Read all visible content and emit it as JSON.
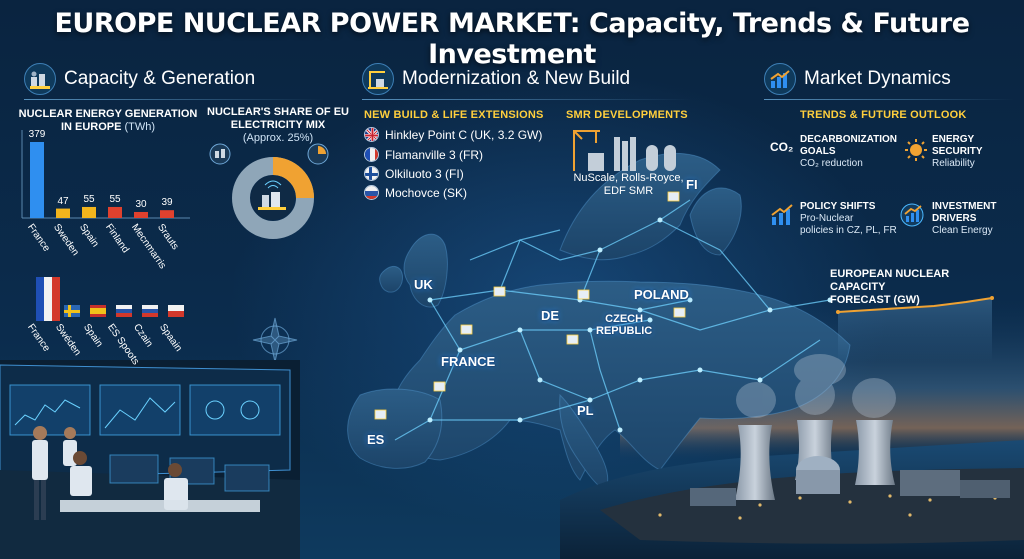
{
  "title": "EUROPE NUCLEAR POWER MARKET: Capacity, Trends & Future Investment",
  "sections": {
    "capacity": {
      "label": "Capacity & Generation",
      "icon": "nuclear-plant-icon"
    },
    "modernization": {
      "label": "Modernization & New Build",
      "icon": "crane-plant-icon"
    },
    "market": {
      "label": "Market Dynamics",
      "icon": "growth-chart-icon"
    }
  },
  "generation_chart": {
    "title": "NUCLEAR ENERGY GENERATION IN EUROPE",
    "unit": "(TWh)"
  },
  "share_chart": {
    "title": "NUCLEAR'S SHARE OF EU ELECTRICITY MIX",
    "subtitle": "(Approx. 25%)",
    "share": 0.25
  },
  "chart_data": [
    {
      "type": "bar",
      "title": "NUCLEAR ENERGY GENERATION IN EUROPE (TWh)",
      "categories": [
        "France",
        "Sweden",
        "Spain",
        "Finland",
        "Mecnmarris",
        "Srauts"
      ],
      "values": [
        379,
        47,
        55,
        55,
        30,
        39
      ],
      "value_labels": [
        "379",
        "47",
        "55",
        "55",
        "30",
        "39"
      ],
      "colors": [
        "#2f8ff0",
        "#f2b51d",
        "#f2b51d",
        "#e0412e",
        "#e0412e",
        "#e0412e"
      ]
    },
    {
      "type": "pie",
      "title": "NUCLEAR'S SHARE OF EU ELECTRICITY MIX",
      "subtitle": "(Approx. 25%)",
      "values": [
        25,
        75
      ]
    }
  ],
  "flag_row": {
    "labels": [
      "France",
      "Swéden",
      "Spain",
      "ES Spoots",
      "Czain",
      "Spaain"
    ]
  },
  "new_build": {
    "title": "NEW BUILD & LIFE EXTENSIONS",
    "items": [
      {
        "label": "Hinkley Point C (UK, 3.2 GW)",
        "flag": "uk"
      },
      {
        "label": "Flamanville 3 (FR)",
        "flag": "fr"
      },
      {
        "label": "Olkiluoto 3 (FI)",
        "flag": "fi"
      },
      {
        "label": "Mochovce (SK)",
        "flag": "sk"
      }
    ]
  },
  "smr": {
    "title": "SMR DEVELOPMENTS",
    "caption_line1": "NuScale, Rolls-Royce,",
    "caption_line2": "EDF SMR"
  },
  "map_labels": {
    "fi": "FI",
    "uk": "UK",
    "poland": "POLAND",
    "de": "DE",
    "czech1": "CZECH",
    "czech2": "REPUBLIC",
    "france": "FRANCE",
    "pl": "PL",
    "es": "ES"
  },
  "outlook": {
    "title": "TRENDS & FUTURE OUTLOOK",
    "items": [
      {
        "icon": "co2-icon",
        "icon_text": "CO₂",
        "head1": "DECARBONIZATION",
        "head2": "GOALS",
        "desc": "CO₂ reduction"
      },
      {
        "icon": "sun-gear-icon",
        "head1": "ENERGY",
        "head2": "SECURITY",
        "desc": "Reliability"
      },
      {
        "icon": "policy-chart-icon",
        "head1": "POLICY SHIFTS",
        "desc1": "Pro-Nuclear",
        "desc2": "policies in CZ, PL, FR"
      },
      {
        "icon": "investment-chart-icon",
        "head1": "INVESTMENT",
        "head2": "DRIVERS",
        "desc": "Clean Energy"
      }
    ]
  },
  "forecast": {
    "title_line1": "EUROPEAN NUCLEAR CAPACITY",
    "title_line2": "FORECAST (GW)"
  },
  "colors": {
    "background": "#071a2e",
    "accent_gold": "#ffcf3d",
    "accent_orange": "#f0a232",
    "accent_blue": "#2f8ff0",
    "glow_blue": "#4ab8ff"
  }
}
